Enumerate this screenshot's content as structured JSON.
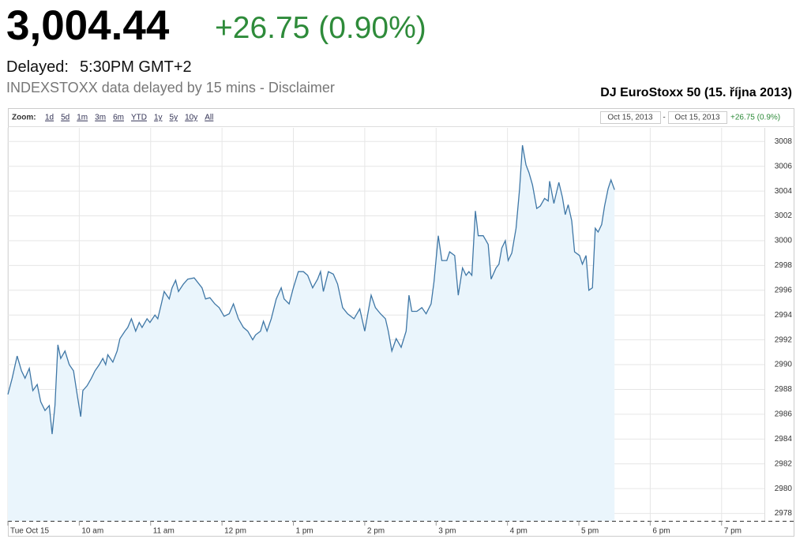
{
  "header": {
    "price": "3,004.44",
    "change": "+26.75 (0.90%)",
    "delayed_label": "Delayed:",
    "delayed_time": "5:30PM GMT+2",
    "disclaimer": "INDEXSTOXX data delayed by 15 mins - Disclaimer"
  },
  "chart_data": {
    "type": "area",
    "title": "DJ EuroStoxx 50 (15. října 2013)",
    "zoom_label": "Zoom:",
    "zoom_options": [
      "1d",
      "5d",
      "1m",
      "3m",
      "6m",
      "YTD",
      "1y",
      "5y",
      "10y",
      "All"
    ],
    "range_start": "Oct 15, 2013",
    "range_separator": "-",
    "range_end": "Oct 15, 2013",
    "range_change": "+26.75 (0.9%)",
    "color": "#3f77a6",
    "fill_color": "#eaf5fc",
    "grid": true,
    "xlim": [
      9,
      19.6
    ],
    "ylim": [
      2977.4,
      3009.1
    ],
    "xticks": [
      {
        "value": 9,
        "label": "Tue Oct 15"
      },
      {
        "value": 10,
        "label": "10 am"
      },
      {
        "value": 11,
        "label": "11 am"
      },
      {
        "value": 12,
        "label": "12 pm"
      },
      {
        "value": 13,
        "label": "1 pm"
      },
      {
        "value": 14,
        "label": "2 pm"
      },
      {
        "value": 15,
        "label": "3 pm"
      },
      {
        "value": 16,
        "label": "4 pm"
      },
      {
        "value": 17,
        "label": "5 pm"
      },
      {
        "value": 18,
        "label": "6 pm"
      },
      {
        "value": 19,
        "label": "7 pm"
      }
    ],
    "yticks": [
      2978,
      2980,
      2982,
      2984,
      2986,
      2988,
      2990,
      2992,
      2994,
      2996,
      2998,
      3000,
      3002,
      3004,
      3006,
      3008
    ],
    "x": [
      9.0,
      9.06,
      9.13,
      9.19,
      9.24,
      9.3,
      9.35,
      9.41,
      9.46,
      9.52,
      9.58,
      9.62,
      9.66,
      9.7,
      9.74,
      9.8,
      9.86,
      9.92,
      9.97,
      10.02,
      10.05,
      10.11,
      10.17,
      10.22,
      10.28,
      10.33,
      10.37,
      10.4,
      10.47,
      10.53,
      10.57,
      10.64,
      10.68,
      10.73,
      10.79,
      10.84,
      10.88,
      10.95,
      10.99,
      11.06,
      11.1,
      11.15,
      11.19,
      11.26,
      11.3,
      11.35,
      11.39,
      11.46,
      11.52,
      11.61,
      11.72,
      11.77,
      11.83,
      11.9,
      11.96,
      12.03,
      12.1,
      12.16,
      12.23,
      12.3,
      12.36,
      12.43,
      12.47,
      12.54,
      12.58,
      12.63,
      12.69,
      12.76,
      12.83,
      12.87,
      12.94,
      13.0,
      13.07,
      13.14,
      13.2,
      13.27,
      13.34,
      13.38,
      13.42,
      13.49,
      13.56,
      13.62,
      13.69,
      13.76,
      13.85,
      13.93,
      14.0,
      14.04,
      14.09,
      14.15,
      14.22,
      14.29,
      14.33,
      14.38,
      14.44,
      14.51,
      14.58,
      14.62,
      14.66,
      14.73,
      14.8,
      14.86,
      14.93,
      14.97,
      15.03,
      15.08,
      15.15,
      15.19,
      15.26,
      15.31,
      15.37,
      15.42,
      15.46,
      15.5,
      15.55,
      15.59,
      15.66,
      15.73,
      15.77,
      15.84,
      15.88,
      15.92,
      15.97,
      16.01,
      16.06,
      16.12,
      16.17,
      16.21,
      16.26,
      16.3,
      16.35,
      16.41,
      16.46,
      16.52,
      16.57,
      16.59,
      16.65,
      16.72,
      16.77,
      16.81,
      16.85,
      16.9,
      16.94,
      17.01,
      17.05,
      17.1,
      17.14,
      17.19,
      17.23,
      17.27,
      17.32,
      17.36,
      17.41,
      17.45,
      17.5
    ],
    "values": [
      2987.6,
      2988.9,
      2990.7,
      2989.5,
      2988.9,
      2989.7,
      2987.9,
      2988.4,
      2987.0,
      2986.3,
      2986.7,
      2984.4,
      2986.7,
      2991.6,
      2990.5,
      2991.1,
      2990.0,
      2989.5,
      2987.6,
      2985.8,
      2987.9,
      2988.3,
      2988.9,
      2989.5,
      2990.0,
      2990.5,
      2990.0,
      2990.8,
      2990.2,
      2991.1,
      2992.1,
      2992.7,
      2993.0,
      2993.7,
      2992.7,
      2993.4,
      2993.0,
      2993.7,
      2993.4,
      2994.0,
      2993.7,
      2994.9,
      2995.9,
      2995.3,
      2996.2,
      2996.8,
      2995.9,
      2996.5,
      2996.9,
      2997.0,
      2996.2,
      2995.3,
      2995.4,
      2994.9,
      2994.6,
      2993.9,
      2994.1,
      2994.9,
      2993.7,
      2993.0,
      2992.7,
      2992.0,
      2992.4,
      2992.7,
      2993.5,
      2992.7,
      2993.7,
      2995.3,
      2996.2,
      2995.3,
      2994.9,
      2996.2,
      2997.5,
      2997.5,
      2997.2,
      2996.2,
      2996.9,
      2997.5,
      2995.9,
      2997.5,
      2997.3,
      2996.5,
      2994.6,
      2994.1,
      2993.7,
      2994.5,
      2992.7,
      2994.0,
      2995.6,
      2994.6,
      2994.1,
      2993.7,
      2992.7,
      2991.1,
      2992.1,
      2991.4,
      2992.7,
      2995.6,
      2994.3,
      2994.3,
      2994.6,
      2994.1,
      2994.9,
      2996.7,
      3000.4,
      2998.4,
      2998.4,
      2999.1,
      2998.8,
      2995.6,
      2997.8,
      2997.2,
      2997.5,
      2997.2,
      3002.4,
      3000.4,
      3000.4,
      2999.7,
      2996.9,
      2997.8,
      2998.1,
      2999.4,
      3000.0,
      2998.4,
      2999.0,
      3001.0,
      3004.2,
      3007.7,
      3006.1,
      3005.5,
      3004.5,
      3002.6,
      3002.8,
      3003.4,
      3003.2,
      3004.8,
      3003.0,
      3004.7,
      3003.5,
      3002.1,
      3002.9,
      3001.6,
      2999.1,
      2998.8,
      2998.1,
      2998.8,
      2996.0,
      2996.2,
      3001.0,
      3000.7,
      3001.3,
      3002.8,
      3004.2,
      3004.9,
      3004.1
    ]
  }
}
